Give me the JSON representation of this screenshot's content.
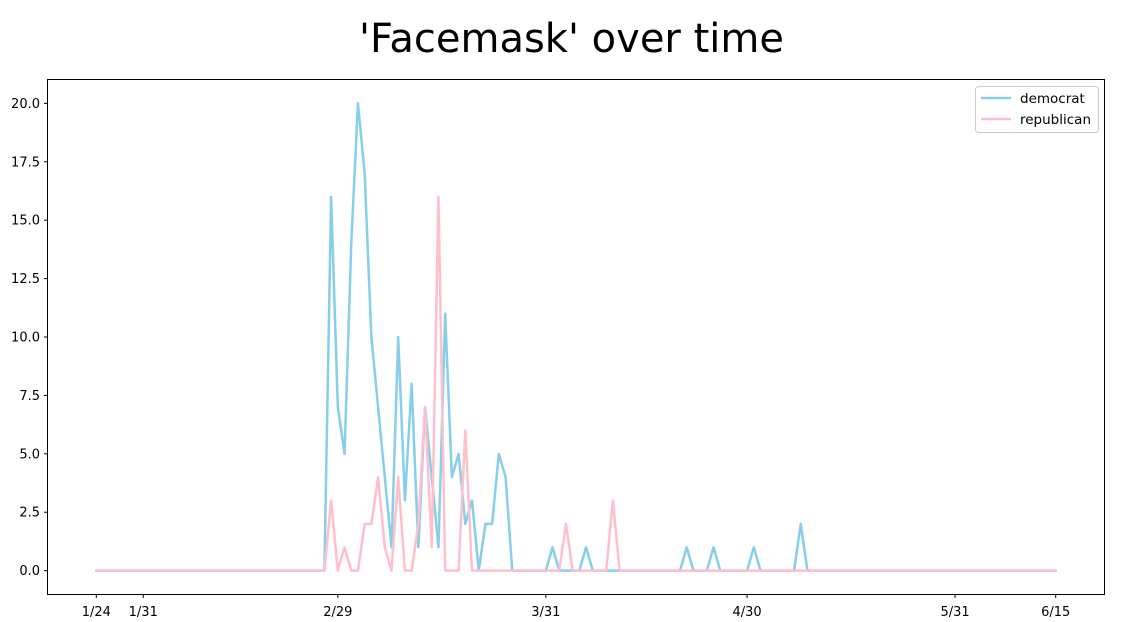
{
  "chart_data": {
    "type": "line",
    "title": "'Facemask' over time",
    "xlabel": "",
    "ylabel": "",
    "x_start": "1/24",
    "x_end": "6/15",
    "xticks": [
      {
        "label": "1/24",
        "day": 0
      },
      {
        "label": "1/31",
        "day": 7
      },
      {
        "label": "2/29",
        "day": 36
      },
      {
        "label": "3/31",
        "day": 67
      },
      {
        "label": "4/30",
        "day": 97
      },
      {
        "label": "5/31",
        "day": 128
      },
      {
        "label": "6/15",
        "day": 143
      }
    ],
    "xlim": [
      -7.2,
      150.2
    ],
    "ylim": [
      -1.0,
      21.0
    ],
    "yticks": [
      "0.0",
      "2.5",
      "5.0",
      "7.5",
      "10.0",
      "12.5",
      "15.0",
      "17.5",
      "20.0"
    ],
    "grid": false,
    "legend_position": "top-right",
    "series": [
      {
        "name": "democrat",
        "color": "#87ceeb",
        "points": [
          [
            0,
            0
          ],
          [
            34,
            0
          ],
          [
            35,
            16
          ],
          [
            36,
            7
          ],
          [
            37,
            5
          ],
          [
            38,
            14
          ],
          [
            39,
            20
          ],
          [
            40,
            17
          ],
          [
            41,
            10
          ],
          [
            42,
            7
          ],
          [
            43,
            4
          ],
          [
            44,
            1
          ],
          [
            45,
            10
          ],
          [
            46,
            3
          ],
          [
            47,
            8
          ],
          [
            48,
            1
          ],
          [
            49,
            7
          ],
          [
            50,
            4
          ],
          [
            51,
            1
          ],
          [
            52,
            11
          ],
          [
            53,
            4
          ],
          [
            54,
            5
          ],
          [
            55,
            2
          ],
          [
            56,
            3
          ],
          [
            57,
            0
          ],
          [
            58,
            2
          ],
          [
            59,
            2
          ],
          [
            60,
            5
          ],
          [
            61,
            4
          ],
          [
            62,
            0
          ],
          [
            67,
            0
          ],
          [
            68,
            1
          ],
          [
            69,
            0
          ],
          [
            72,
            0
          ],
          [
            73,
            1
          ],
          [
            74,
            0
          ],
          [
            87,
            0
          ],
          [
            88,
            1
          ],
          [
            89,
            0
          ],
          [
            91,
            0
          ],
          [
            92,
            1
          ],
          [
            93,
            0
          ],
          [
            97,
            0
          ],
          [
            98,
            1
          ],
          [
            99,
            0
          ],
          [
            104,
            0
          ],
          [
            105,
            2
          ],
          [
            106,
            0
          ],
          [
            143,
            0
          ]
        ]
      },
      {
        "name": "republican",
        "color": "#ffc0cb",
        "points": [
          [
            0,
            0
          ],
          [
            34,
            0
          ],
          [
            35,
            3
          ],
          [
            36,
            0
          ],
          [
            37,
            1
          ],
          [
            38,
            0
          ],
          [
            39,
            0
          ],
          [
            40,
            2
          ],
          [
            41,
            2
          ],
          [
            42,
            4
          ],
          [
            43,
            1
          ],
          [
            44,
            0
          ],
          [
            45,
            4
          ],
          [
            46,
            0
          ],
          [
            47,
            0
          ],
          [
            48,
            2
          ],
          [
            49,
            7
          ],
          [
            50,
            1
          ],
          [
            51,
            16
          ],
          [
            52,
            0
          ],
          [
            54,
            0
          ],
          [
            55,
            6
          ],
          [
            56,
            0
          ],
          [
            69,
            0
          ],
          [
            70,
            2
          ],
          [
            71,
            0
          ],
          [
            76,
            0
          ],
          [
            77,
            3
          ],
          [
            78,
            0
          ],
          [
            143,
            0
          ]
        ]
      }
    ]
  }
}
